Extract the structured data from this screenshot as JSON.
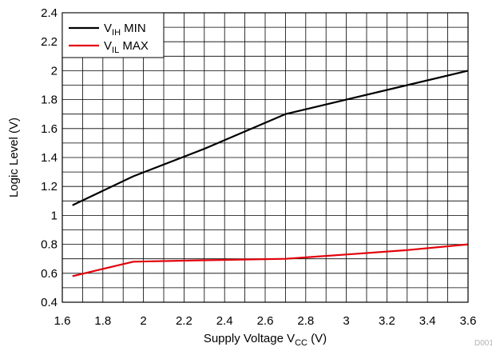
{
  "chart_data": {
    "type": "line",
    "title": "",
    "xlabel": "Supply Voltage V",
    "xlabel_sub": "CC",
    "xlabel_unit": " (V)",
    "ylabel": "Logic Level (V)",
    "xlim": [
      1.6,
      3.6
    ],
    "ylim": [
      0.4,
      2.4
    ],
    "x_ticks": [
      "1.6",
      "1.8",
      "2",
      "2.2",
      "2.4",
      "2.6",
      "2.8",
      "3",
      "3.2",
      "3.4",
      "3.6"
    ],
    "y_ticks": [
      "0.4",
      "0.6",
      "0.8",
      "1",
      "1.2",
      "1.4",
      "1.6",
      "1.8",
      "2",
      "2.2",
      "2.4"
    ],
    "grid": true,
    "legend_position": "top-left",
    "series": [
      {
        "name_main": "V",
        "name_sub": "IH",
        "name_suffix": " MIN",
        "color": "#000000",
        "x": [
          1.65,
          1.95,
          2.3,
          2.7,
          3.0,
          3.3,
          3.6
        ],
        "y": [
          1.07,
          1.27,
          1.46,
          1.7,
          1.8,
          1.9,
          2.0
        ]
      },
      {
        "name_main": "V",
        "name_sub": "IL",
        "name_suffix": " MAX",
        "color": "#e3000b",
        "x": [
          1.65,
          1.95,
          2.3,
          2.7,
          3.0,
          3.3,
          3.6
        ],
        "y": [
          0.58,
          0.68,
          0.69,
          0.7,
          0.73,
          0.76,
          0.8
        ]
      }
    ],
    "watermark": "D001"
  }
}
